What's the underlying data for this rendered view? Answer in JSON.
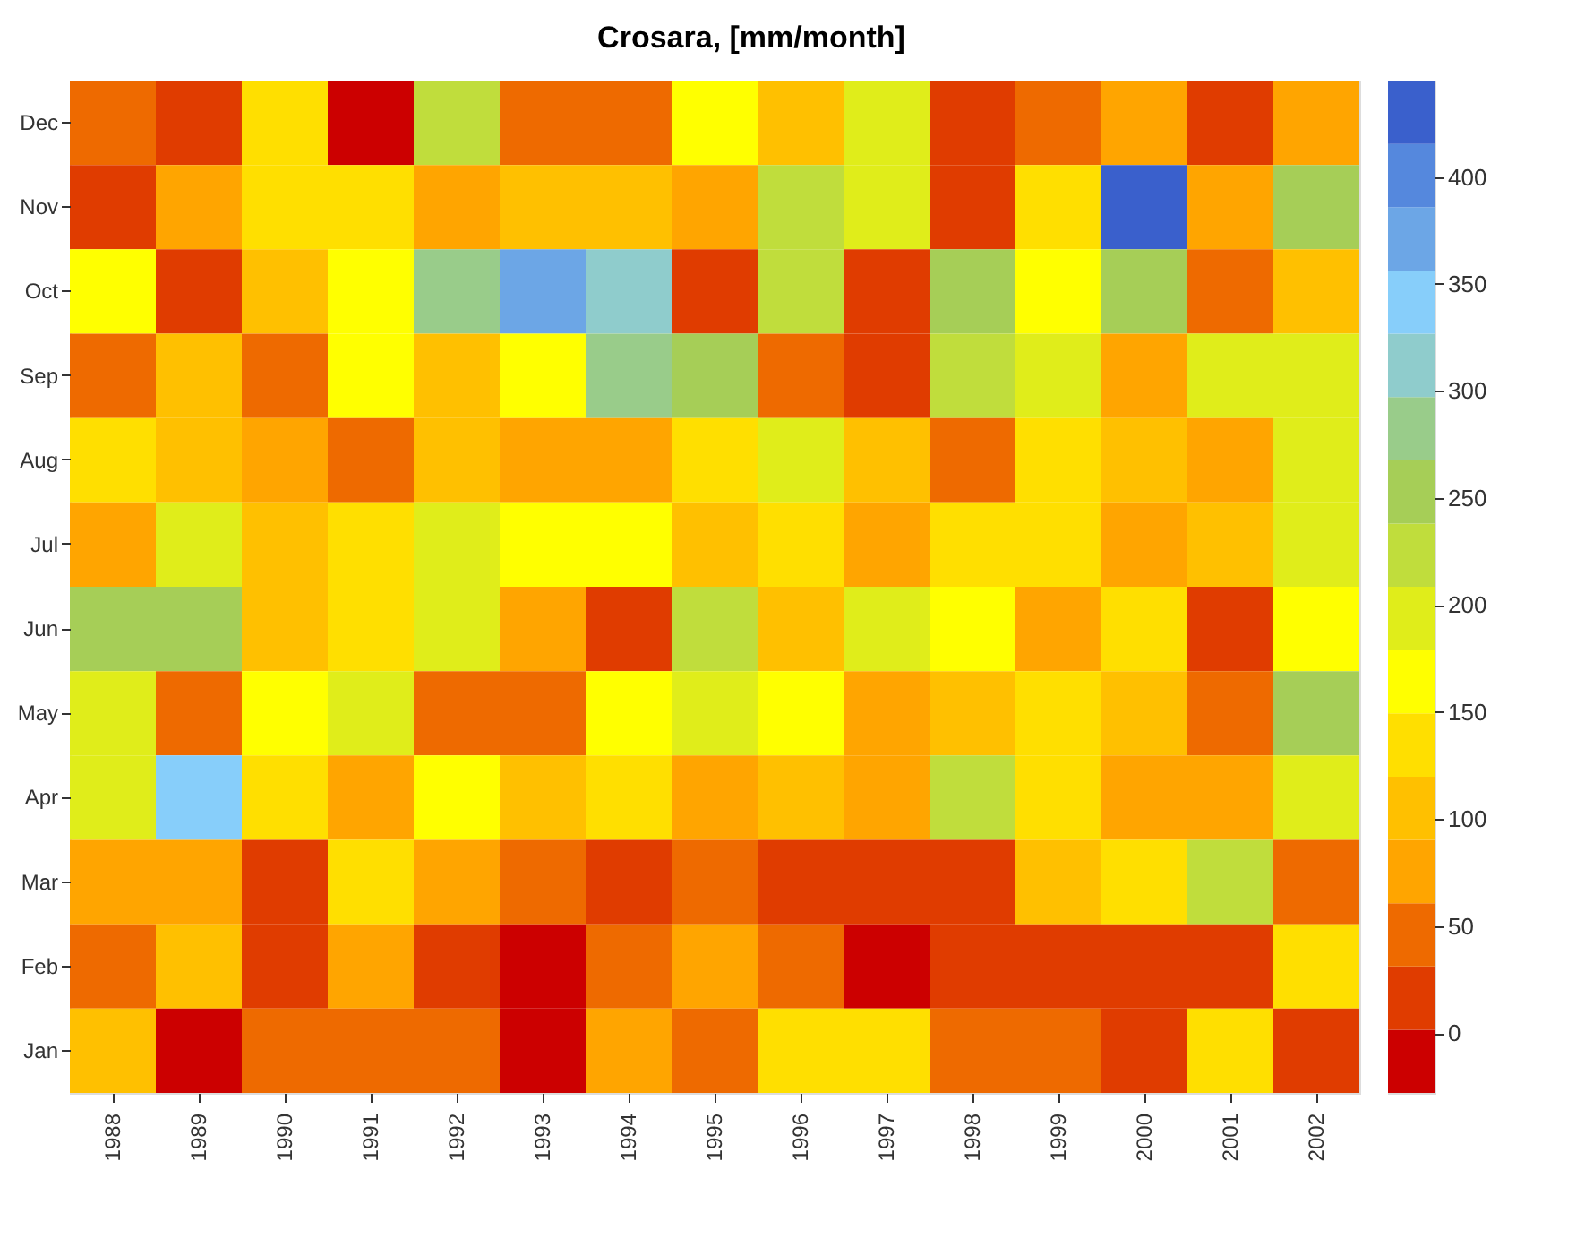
{
  "chart_data": {
    "type": "heatmap",
    "title": "Crosara, [mm/month]",
    "categories": [
      "1988",
      "1989",
      "1990",
      "1991",
      "1992",
      "1993",
      "1994",
      "1995",
      "1996",
      "1997",
      "1998",
      "1999",
      "2000",
      "2001",
      "2002"
    ],
    "y_categories": [
      "Dec",
      "Nov",
      "Oct",
      "Sep",
      "Aug",
      "Jul",
      "Jun",
      "May",
      "Apr",
      "Mar",
      "Feb",
      "Jan"
    ],
    "cells": [
      [
        46,
        17,
        135,
        -13,
        223,
        46,
        46,
        164,
        105,
        194,
        17,
        46,
        76,
        17,
        76
      ],
      [
        17,
        76,
        135,
        135,
        76,
        105,
        105,
        76,
        223,
        194,
        17,
        135,
        430,
        76,
        253
      ],
      [
        164,
        17,
        105,
        164,
        282,
        371,
        312,
        17,
        223,
        17,
        253,
        164,
        253,
        46,
        105
      ],
      [
        46,
        105,
        46,
        164,
        105,
        164,
        282,
        253,
        46,
        17,
        223,
        194,
        76,
        194,
        194
      ],
      [
        135,
        105,
        76,
        46,
        105,
        76,
        76,
        135,
        194,
        105,
        46,
        135,
        105,
        76,
        194
      ],
      [
        76,
        194,
        105,
        135,
        194,
        164,
        164,
        105,
        135,
        76,
        135,
        135,
        76,
        105,
        194
      ],
      [
        253,
        253,
        105,
        135,
        194,
        76,
        17,
        223,
        105,
        194,
        164,
        76,
        135,
        17,
        164
      ],
      [
        194,
        46,
        164,
        194,
        46,
        46,
        164,
        194,
        164,
        76,
        105,
        135,
        105,
        46,
        253
      ],
      [
        194,
        341,
        135,
        76,
        164,
        105,
        135,
        76,
        105,
        76,
        223,
        135,
        76,
        76,
        194
      ],
      [
        76,
        76,
        17,
        135,
        76,
        46,
        17,
        46,
        17,
        17,
        17,
        105,
        135,
        223,
        46
      ],
      [
        46,
        105,
        17,
        76,
        17,
        -13,
        46,
        76,
        46,
        -13,
        17,
        17,
        17,
        17,
        135
      ],
      [
        105,
        -13,
        46,
        46,
        46,
        -13,
        76,
        46,
        135,
        135,
        46,
        46,
        17,
        135,
        17
      ]
    ],
    "colors": [
      "#cc0000",
      "#e03c00",
      "#ee6a00",
      "#ffa500",
      "#ffc000",
      "#ffdf00",
      "#ffff00",
      "#e0ed1a",
      "#c0dd3c",
      "#a6ce57",
      "#99cc8a",
      "#8fcccc",
      "#87cefa",
      "#6ca6e6",
      "#5588dd",
      "#3a60cc"
    ],
    "clim": [
      -28,
      445
    ],
    "cticks": [
      0,
      50,
      100,
      150,
      200,
      250,
      300,
      350,
      400
    ]
  }
}
